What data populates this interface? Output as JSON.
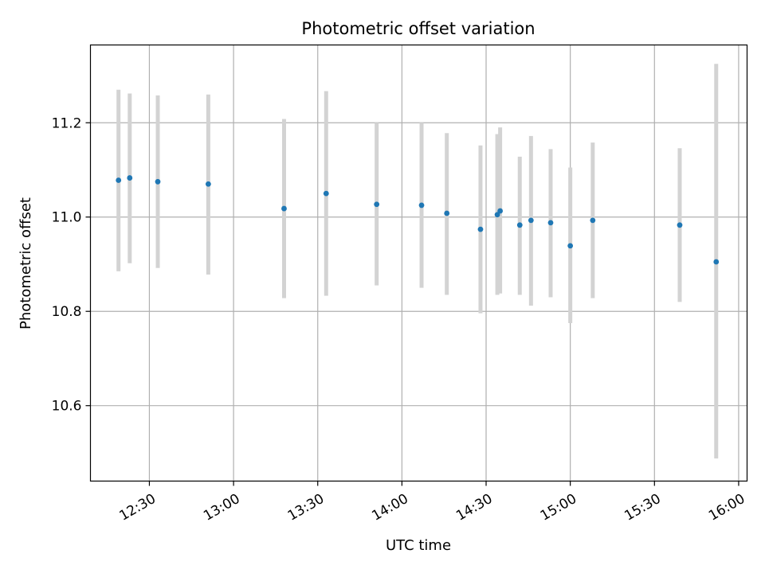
{
  "chart_data": {
    "type": "scatter",
    "title": "Photometric offset variation",
    "xlabel": "UTC time",
    "ylabel": "Photometric offset",
    "x_axis_type": "time",
    "xlim": [
      "12:09",
      "16:03"
    ],
    "ylim": [
      10.44,
      11.365
    ],
    "grid": true,
    "x_ticks": [
      "12:30",
      "13:00",
      "13:30",
      "14:00",
      "14:30",
      "15:00",
      "15:30",
      "16:00"
    ],
    "y_ticks": [
      "10.6",
      "10.8",
      "11.0",
      "11.2"
    ],
    "point_color": "#1f77b4",
    "errorbar_color": "#d3d3d3",
    "grid_color": "#b0b0b0",
    "series": [
      {
        "x": [
          "12:19",
          "12:23",
          "12:33",
          "12:51",
          "13:18",
          "13:33",
          "13:51",
          "14:07",
          "14:16",
          "14:28",
          "14:34",
          "14:35",
          "14:42",
          "14:46",
          "14:53",
          "15:00",
          "15:08",
          "15:39",
          "15:52"
        ],
        "y": [
          11.078,
          11.083,
          11.075,
          11.07,
          11.018,
          11.05,
          11.027,
          11.025,
          11.008,
          10.974,
          11.005,
          11.013,
          10.983,
          10.993,
          10.988,
          10.939,
          10.993,
          10.983,
          10.905
        ],
        "yerr_low": [
          10.885,
          10.902,
          10.892,
          10.878,
          10.828,
          10.833,
          10.855,
          10.85,
          10.835,
          10.796,
          10.835,
          10.838,
          10.835,
          10.812,
          10.83,
          10.775,
          10.828,
          10.82,
          10.488
        ],
        "yerr_high": [
          11.27,
          11.262,
          11.258,
          11.26,
          11.208,
          11.267,
          11.2,
          11.2,
          11.178,
          11.152,
          11.176,
          11.19,
          11.128,
          11.172,
          11.144,
          11.105,
          11.158,
          11.146,
          11.325
        ]
      }
    ]
  }
}
